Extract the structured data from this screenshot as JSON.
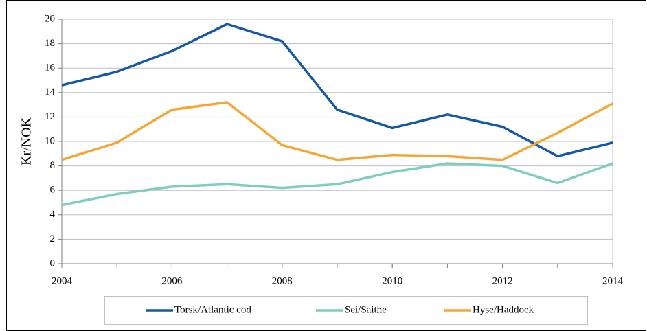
{
  "chart_data": {
    "type": "line",
    "ylabel": "Kr/NOK",
    "x": [
      2004,
      2005,
      2006,
      2007,
      2008,
      2009,
      2010,
      2011,
      2012,
      2013,
      2014
    ],
    "series": [
      {
        "name": "Torsk/Atlantic cod",
        "color": "#1559a4",
        "values": [
          14.6,
          15.7,
          17.4,
          19.6,
          18.2,
          12.6,
          11.1,
          12.2,
          11.2,
          8.8,
          9.9
        ]
      },
      {
        "name": "Sei/Saithe",
        "color": "#7fcdbb",
        "values": [
          4.8,
          5.7,
          6.3,
          6.5,
          6.2,
          6.5,
          7.5,
          8.2,
          8.0,
          6.6,
          8.2
        ]
      },
      {
        "name": "Hyse/Haddock",
        "color": "#f6a733",
        "values": [
          8.5,
          9.9,
          12.6,
          13.2,
          9.7,
          8.5,
          8.9,
          8.8,
          8.5,
          10.7,
          13.1
        ]
      }
    ],
    "xlim": [
      2004,
      2014
    ],
    "xticks": [
      2004,
      2006,
      2008,
      2010,
      2012,
      2014
    ],
    "ylim": [
      0,
      20
    ],
    "yticks": [
      0,
      2,
      4,
      6,
      8,
      10,
      12,
      14,
      16,
      18,
      20
    ],
    "grid": true,
    "legend": "bottom"
  }
}
